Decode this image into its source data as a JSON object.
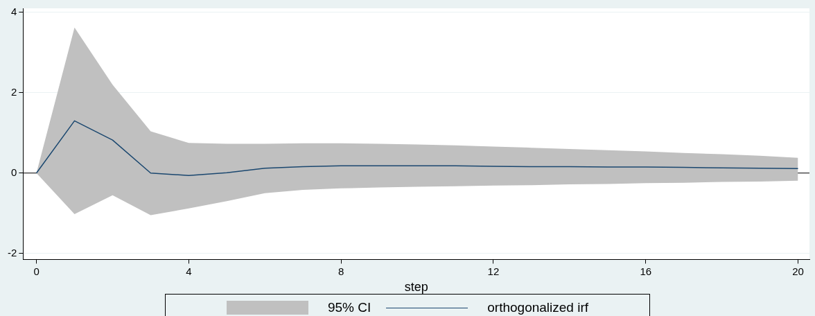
{
  "chart_data": {
    "type": "line",
    "xlabel": "step",
    "x": [
      0,
      1,
      2,
      3,
      4,
      5,
      6,
      7,
      8,
      9,
      10,
      11,
      12,
      13,
      14,
      15,
      16,
      17,
      18,
      19,
      20
    ],
    "xlim": [
      -0.35,
      20.3
    ],
    "xticks": [
      0,
      4,
      8,
      12,
      16,
      20
    ],
    "ylim": [
      -2.15,
      4.1
    ],
    "yticks": [
      -2,
      0,
      2,
      4
    ],
    "grid": "y",
    "legend": "bottom",
    "annotations": [
      "95% CI"
    ],
    "ref_lines": [
      {
        "axis": "y",
        "value": 0,
        "color": "#000000"
      }
    ],
    "series": [
      {
        "name": "orthogonalized irf",
        "type": "line",
        "color": "#1a476f",
        "values": [
          0,
          1.3,
          0.82,
          0,
          -0.06,
          0.01,
          0.12,
          0.16,
          0.18,
          0.18,
          0.18,
          0.18,
          0.17,
          0.16,
          0.16,
          0.15,
          0.15,
          0.14,
          0.13,
          0.12,
          0.11
        ],
        "lower": [
          0,
          -1.02,
          -0.55,
          -1.05,
          -0.88,
          -0.7,
          -0.5,
          -0.42,
          -0.38,
          -0.36,
          -0.34,
          -0.33,
          -0.31,
          -0.3,
          -0.28,
          -0.27,
          -0.25,
          -0.24,
          -0.22,
          -0.21,
          -0.19
        ],
        "upper": [
          0,
          3.62,
          2.2,
          1.04,
          0.75,
          0.73,
          0.73,
          0.74,
          0.74,
          0.73,
          0.71,
          0.69,
          0.66,
          0.63,
          0.6,
          0.57,
          0.54,
          0.5,
          0.47,
          0.43,
          0.38
        ]
      }
    ]
  }
}
